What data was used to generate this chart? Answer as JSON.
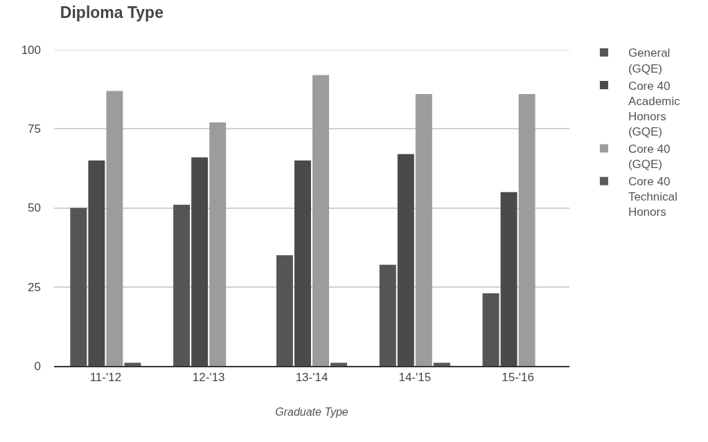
{
  "chart_data": {
    "type": "bar",
    "title": "Diploma Type",
    "xlabel": "Graduate Type",
    "categories": [
      "11-'12",
      "12-'13",
      "13-'14",
      "14-'15",
      "15-'16"
    ],
    "series": [
      {
        "name": "General (GQE)",
        "color": "#555555",
        "values": [
          50,
          51,
          35,
          32,
          23
        ]
      },
      {
        "name": "Core 40 Academic Honors (GQE)",
        "color": "#4a4a4a",
        "values": [
          65,
          66,
          65,
          67,
          55
        ]
      },
      {
        "name": "Core 40 (GQE)",
        "color": "#9c9c9c",
        "values": [
          87,
          77,
          92,
          86,
          86
        ]
      },
      {
        "name": "Core 40 Technical Honors",
        "color": "#5a5a5a",
        "values": [
          1,
          0,
          1,
          1,
          0
        ]
      }
    ],
    "ylim": [
      0,
      100
    ],
    "yticks": [
      0,
      25,
      50,
      75,
      100
    ],
    "grid": "y",
    "legend": "top right"
  }
}
